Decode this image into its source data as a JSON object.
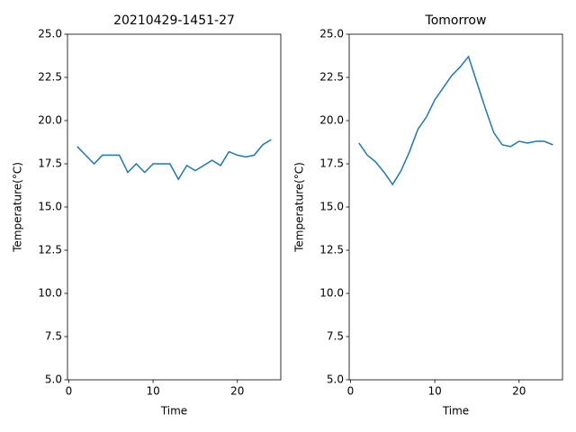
{
  "chart_data": [
    {
      "type": "line",
      "title": "20210429-1451-27",
      "x_label": "Time",
      "y_label": "Temperature(°C)",
      "x": [
        1,
        2,
        3,
        4,
        5,
        6,
        7,
        8,
        9,
        10,
        11,
        12,
        13,
        14,
        15,
        16,
        17,
        18,
        19,
        20,
        21,
        22,
        23,
        24
      ],
      "series": [
        {
          "color": "#1f77b4",
          "values": [
            18.5,
            18.0,
            17.5,
            18.0,
            18.0,
            18.0,
            17.0,
            17.5,
            17.0,
            17.5,
            17.5,
            17.5,
            16.6,
            17.4,
            17.1,
            17.4,
            17.7,
            17.4,
            18.2,
            18.0,
            17.9,
            18.0,
            18.6,
            18.9
          ]
        }
      ],
      "xlim": [
        -0.15,
        25.15
      ],
      "xticks": [
        0,
        10,
        20
      ],
      "ylim": [
        5,
        25
      ],
      "yticks": [
        {
          "value": 5,
          "label": "5.0"
        },
        {
          "value": 7.5,
          "label": "7.5"
        },
        {
          "value": 10,
          "label": "10.0"
        },
        {
          "value": 12.5,
          "label": "12.5"
        },
        {
          "value": 15,
          "label": "15.0"
        },
        {
          "value": 17.5,
          "label": "17.5"
        },
        {
          "value": 20,
          "label": "20.0"
        },
        {
          "value": 22.5,
          "label": "22.5"
        },
        {
          "value": 25,
          "label": "25.0"
        }
      ]
    },
    {
      "type": "line",
      "title": "Tomorrow",
      "x_label": "Time",
      "y_label": "Temperature(°C)",
      "x": [
        1,
        2,
        3,
        4,
        5,
        6,
        7,
        8,
        9,
        10,
        11,
        12,
        13,
        14,
        15,
        16,
        17,
        18,
        19,
        20,
        21,
        22,
        23,
        24
      ],
      "series": [
        {
          "color": "#1f77b4",
          "values": [
            18.7,
            18.0,
            17.6,
            17.0,
            16.3,
            17.1,
            18.2,
            19.5,
            20.2,
            21.2,
            21.9,
            22.6,
            23.1,
            23.7,
            22.2,
            20.7,
            19.3,
            18.6,
            18.5,
            18.8,
            18.7,
            18.8,
            18.8,
            18.6
          ]
        }
      ],
      "xlim": [
        -0.15,
        25.15
      ],
      "xticks": [
        0,
        10,
        20
      ],
      "ylim": [
        5,
        25
      ],
      "yticks": [
        {
          "value": 5,
          "label": "5.0"
        },
        {
          "value": 7.5,
          "label": "7.5"
        },
        {
          "value": 10,
          "label": "10.0"
        },
        {
          "value": 12.5,
          "label": "12.5"
        },
        {
          "value": 15,
          "label": "15.0"
        },
        {
          "value": 17.5,
          "label": "17.5"
        },
        {
          "value": 20,
          "label": "20.0"
        },
        {
          "value": 22.5,
          "label": "22.5"
        },
        {
          "value": 25,
          "label": "25.0"
        }
      ]
    }
  ]
}
